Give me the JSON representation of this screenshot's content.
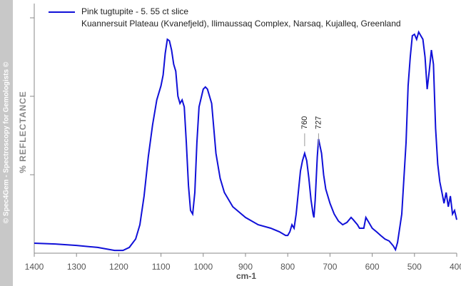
{
  "chart_data": {
    "type": "line",
    "watermark": "© Spec4Gem - Spectroscopy for Gemologists ©",
    "ylabel": "% REFLECTANCE",
    "xlabel": "cm-1",
    "xlim": [
      1400,
      400
    ],
    "xticks": [
      1400,
      1300,
      1200,
      1100,
      1000,
      900,
      800,
      700,
      600,
      500,
      400
    ],
    "ylim": [
      0,
      100
    ],
    "annotations": [
      {
        "text": "760",
        "x": 760
      },
      {
        "text": "727",
        "x": 727
      }
    ],
    "x": [
      1400,
      1350,
      1300,
      1250,
      1210,
      1190,
      1175,
      1160,
      1150,
      1140,
      1130,
      1120,
      1110,
      1100,
      1095,
      1090,
      1085,
      1080,
      1075,
      1070,
      1065,
      1060,
      1055,
      1050,
      1045,
      1040,
      1035,
      1030,
      1025,
      1020,
      1015,
      1010,
      1000,
      995,
      990,
      980,
      970,
      960,
      950,
      930,
      900,
      870,
      840,
      820,
      805,
      800,
      795,
      790,
      785,
      780,
      775,
      770,
      765,
      760,
      755,
      750,
      745,
      740,
      738,
      735,
      730,
      727,
      720,
      715,
      710,
      700,
      690,
      680,
      670,
      660,
      650,
      645,
      635,
      630,
      620,
      615,
      610,
      600,
      590,
      580,
      570,
      560,
      550,
      545,
      540,
      530,
      520,
      515,
      510,
      505,
      500,
      495,
      490,
      485,
      480,
      475,
      470,
      465,
      460,
      455,
      450,
      445,
      440,
      435,
      430,
      425,
      420,
      415,
      410,
      405,
      400
    ],
    "series": [
      {
        "name": "Pink tugtupite - 5. 55 ct slice",
        "subname": "Kuannersuit Plateau (Kvanefjeld), Ilimaussaq Complex, Narsaq, Kujalleq, Greenland",
        "color": "#1010d8",
        "values": [
          4.0,
          3.7,
          3.1,
          2.3,
          1.1,
          1.1,
          2.3,
          5.7,
          11.4,
          22.9,
          38.6,
          51.4,
          61.4,
          67.1,
          71.4,
          80,
          85.7,
          85.1,
          81.4,
          75.7,
          72.9,
          62.9,
          60,
          61.4,
          58.6,
          44.3,
          27.1,
          17.1,
          15.7,
          24.3,
          44.3,
          58.6,
          65.7,
          66.6,
          65.7,
          60,
          40,
          30,
          24.3,
          18.6,
          14.3,
          11.4,
          10,
          8.6,
          7.1,
          7.1,
          8.6,
          11.4,
          10,
          15.7,
          24.3,
          32.9,
          37.1,
          40,
          37.1,
          30,
          21.4,
          15.7,
          14.3,
          21.4,
          38.6,
          45.7,
          40,
          31.4,
          25.7,
          20,
          15.7,
          12.9,
          11.4,
          12.3,
          14.3,
          13.4,
          11.4,
          10,
          10,
          14.3,
          12.9,
          10,
          8.6,
          7.1,
          5.7,
          4.9,
          2.9,
          1.4,
          4.3,
          15.7,
          44.3,
          67.1,
          78.6,
          87.1,
          87.7,
          85.7,
          88.6,
          87.1,
          85.7,
          78.6,
          65.7,
          72.9,
          81.4,
          75.7,
          50,
          35.7,
          28.6,
          24.3,
          20,
          24.3,
          18.6,
          22.9,
          15.7,
          17.1,
          13.4
        ]
      }
    ]
  }
}
